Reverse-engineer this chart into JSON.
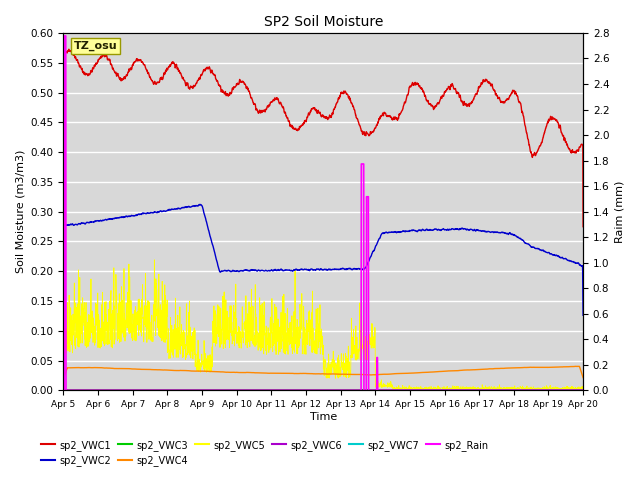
{
  "title": "SP2 Soil Moisture",
  "xlabel": "Time",
  "ylabel_left": "Soil Moisture (m3/m3)",
  "ylabel_right": "Raim (mm)",
  "ylim_left": [
    0.0,
    0.6
  ],
  "ylim_right": [
    0.0,
    2.8
  ],
  "bg_color": "#d8d8d8",
  "tz_label": "TZ_osu",
  "series_colors": {
    "sp2_VWC1": "#dd0000",
    "sp2_VWC2": "#0000cc",
    "sp2_VWC3": "#00cc00",
    "sp2_VWC4": "#ff8800",
    "sp2_VWC5": "#ffff00",
    "sp2_VWC6": "#aa00cc",
    "sp2_VWC7": "#00cccc",
    "sp2_Rain": "#ff00ff"
  },
  "xtick_labels": [
    "Apr 5",
    "Apr 6",
    "Apr 7",
    "Apr 8",
    "Apr 9",
    "Apr 10",
    "Apr 11",
    "Apr 12",
    "Apr 13",
    "Apr 14",
    "Apr 15",
    "Apr 16",
    "Apr 17",
    "Apr 18",
    "Apr 19",
    "Apr 20"
  ],
  "legend_order": [
    "sp2_VWC1",
    "sp2_VWC2",
    "sp2_VWC3",
    "sp2_VWC4",
    "sp2_VWC5",
    "sp2_VWC6",
    "sp2_VWC7",
    "sp2_Rain"
  ]
}
